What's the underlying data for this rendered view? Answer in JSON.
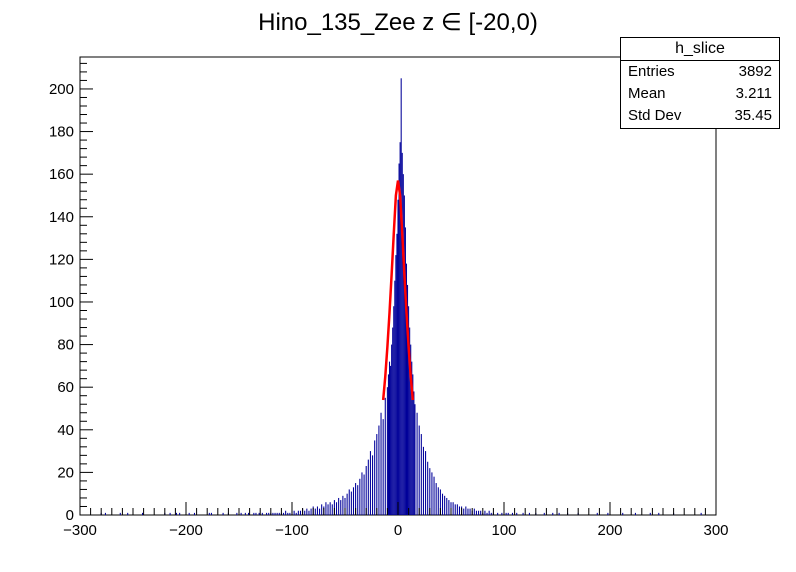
{
  "chart_data": {
    "type": "histogram",
    "title": "Hino_135_Zee z  ∈ [-20,0)",
    "xlim": [
      -300,
      300
    ],
    "ylim": [
      0,
      215
    ],
    "x_ticks": [
      -300,
      -200,
      -100,
      0,
      100,
      200,
      300
    ],
    "x_tick_labels": [
      "−300",
      "−200",
      "−100",
      "0",
      "100",
      "200",
      "300"
    ],
    "y_ticks": [
      0,
      20,
      40,
      60,
      80,
      100,
      120,
      140,
      160,
      180,
      200
    ],
    "y_tick_labels": [
      "0",
      "20",
      "40",
      "60",
      "80",
      "100",
      "120",
      "140",
      "160",
      "180",
      "200"
    ],
    "bin_width": 1,
    "histogram": {
      "name": "h_slice",
      "color": "#000099",
      "bins": [
        [
          -280,
          1
        ],
        [
          -276,
          1
        ],
        [
          -262,
          1
        ],
        [
          -255,
          1
        ],
        [
          -241,
          1
        ],
        [
          -220,
          1
        ],
        [
          -215,
          1
        ],
        [
          -209,
          1
        ],
        [
          -206,
          1
        ],
        [
          -197,
          1
        ],
        [
          -192,
          1
        ],
        [
          -178,
          1
        ],
        [
          -176,
          1
        ],
        [
          -165,
          1
        ],
        [
          -160,
          1
        ],
        [
          -152,
          1
        ],
        [
          -148,
          1
        ],
        [
          -144,
          1
        ],
        [
          -141,
          1
        ],
        [
          -136,
          1
        ],
        [
          -134,
          1
        ],
        [
          -131,
          1
        ],
        [
          -128,
          1
        ],
        [
          -124,
          1
        ],
        [
          -122,
          1
        ],
        [
          -120,
          1
        ],
        [
          -118,
          1
        ],
        [
          -116,
          1
        ],
        [
          -114,
          1
        ],
        [
          -112,
          1
        ],
        [
          -110,
          1
        ],
        [
          -108,
          1
        ],
        [
          -106,
          2
        ],
        [
          -104,
          1
        ],
        [
          -102,
          1
        ],
        [
          -100,
          2
        ],
        [
          -98,
          2
        ],
        [
          -96,
          1
        ],
        [
          -94,
          2
        ],
        [
          -92,
          2
        ],
        [
          -90,
          3
        ],
        [
          -88,
          2
        ],
        [
          -86,
          3
        ],
        [
          -84,
          2
        ],
        [
          -82,
          3
        ],
        [
          -80,
          4
        ],
        [
          -78,
          3
        ],
        [
          -76,
          4
        ],
        [
          -74,
          3
        ],
        [
          -72,
          5
        ],
        [
          -70,
          4
        ],
        [
          -68,
          6
        ],
        [
          -66,
          5
        ],
        [
          -64,
          6
        ],
        [
          -62,
          5
        ],
        [
          -60,
          7
        ],
        [
          -58,
          6
        ],
        [
          -56,
          8
        ],
        [
          -54,
          7
        ],
        [
          -52,
          9
        ],
        [
          -50,
          8
        ],
        [
          -48,
          10
        ],
        [
          -46,
          12
        ],
        [
          -44,
          11
        ],
        [
          -42,
          13
        ],
        [
          -40,
          15
        ],
        [
          -38,
          14
        ],
        [
          -36,
          17
        ],
        [
          -34,
          20
        ],
        [
          -32,
          19
        ],
        [
          -30,
          23
        ],
        [
          -28,
          26
        ],
        [
          -26,
          30
        ],
        [
          -24,
          28
        ],
        [
          -22,
          35
        ],
        [
          -20,
          38
        ],
        [
          -18,
          42
        ],
        [
          -16,
          48
        ],
        [
          -14,
          45
        ],
        [
          -12,
          55
        ],
        [
          -10,
          60
        ],
        [
          -9,
          66
        ],
        [
          -8,
          72
        ],
        [
          -7,
          70
        ],
        [
          -6,
          80
        ],
        [
          -5,
          88
        ],
        [
          -4,
          98
        ],
        [
          -3,
          110
        ],
        [
          -2,
          122
        ],
        [
          -1,
          132
        ],
        [
          0,
          148
        ],
        [
          1,
          165
        ],
        [
          2,
          175
        ],
        [
          3,
          205
        ],
        [
          4,
          170
        ],
        [
          5,
          160
        ],
        [
          6,
          150
        ],
        [
          7,
          135
        ],
        [
          8,
          118
        ],
        [
          9,
          108
        ],
        [
          10,
          98
        ],
        [
          11,
          88
        ],
        [
          12,
          80
        ],
        [
          13,
          72
        ],
        [
          14,
          66
        ],
        [
          15,
          58
        ],
        [
          16,
          52
        ],
        [
          18,
          48
        ],
        [
          20,
          42
        ],
        [
          22,
          38
        ],
        [
          24,
          32
        ],
        [
          26,
          30
        ],
        [
          28,
          25
        ],
        [
          30,
          22
        ],
        [
          32,
          20
        ],
        [
          34,
          18
        ],
        [
          36,
          15
        ],
        [
          38,
          13
        ],
        [
          40,
          12
        ],
        [
          42,
          10
        ],
        [
          44,
          9
        ],
        [
          46,
          8
        ],
        [
          48,
          7
        ],
        [
          50,
          6
        ],
        [
          52,
          6
        ],
        [
          54,
          5
        ],
        [
          56,
          5
        ],
        [
          58,
          4
        ],
        [
          60,
          4
        ],
        [
          62,
          3
        ],
        [
          64,
          4
        ],
        [
          66,
          3
        ],
        [
          68,
          3
        ],
        [
          70,
          2
        ],
        [
          72,
          3
        ],
        [
          74,
          2
        ],
        [
          76,
          2
        ],
        [
          78,
          2
        ],
        [
          80,
          1
        ],
        [
          82,
          2
        ],
        [
          84,
          1
        ],
        [
          86,
          2
        ],
        [
          88,
          1
        ],
        [
          90,
          1
        ],
        [
          94,
          1
        ],
        [
          98,
          1
        ],
        [
          102,
          1
        ],
        [
          104,
          1
        ],
        [
          108,
          1
        ],
        [
          112,
          1
        ],
        [
          118,
          1
        ],
        [
          124,
          1
        ],
        [
          130,
          1
        ],
        [
          138,
          1
        ],
        [
          146,
          1
        ],
        [
          152,
          1
        ],
        [
          160,
          1
        ],
        [
          170,
          1
        ],
        [
          188,
          1
        ],
        [
          198,
          1
        ],
        [
          212,
          1
        ],
        [
          224,
          1
        ],
        [
          238,
          1
        ],
        [
          246,
          1
        ],
        [
          260,
          1
        ],
        [
          286,
          1
        ]
      ]
    },
    "fit": {
      "color": "#ff0000",
      "x": [
        -14,
        -12,
        -10,
        -8,
        -6,
        -4,
        -2,
        0,
        2,
        4,
        6,
        8,
        10,
        12,
        14
      ],
      "y": [
        54,
        65,
        79,
        95,
        113,
        132,
        150,
        157,
        150,
        132,
        113,
        95,
        79,
        65,
        54
      ]
    }
  },
  "stats_box": {
    "title": "h_slice",
    "rows": [
      {
        "label": "Entries",
        "value": "3892"
      },
      {
        "label": "Mean",
        "value": "3.211"
      },
      {
        "label": "Std Dev",
        "value": "35.45"
      }
    ]
  }
}
